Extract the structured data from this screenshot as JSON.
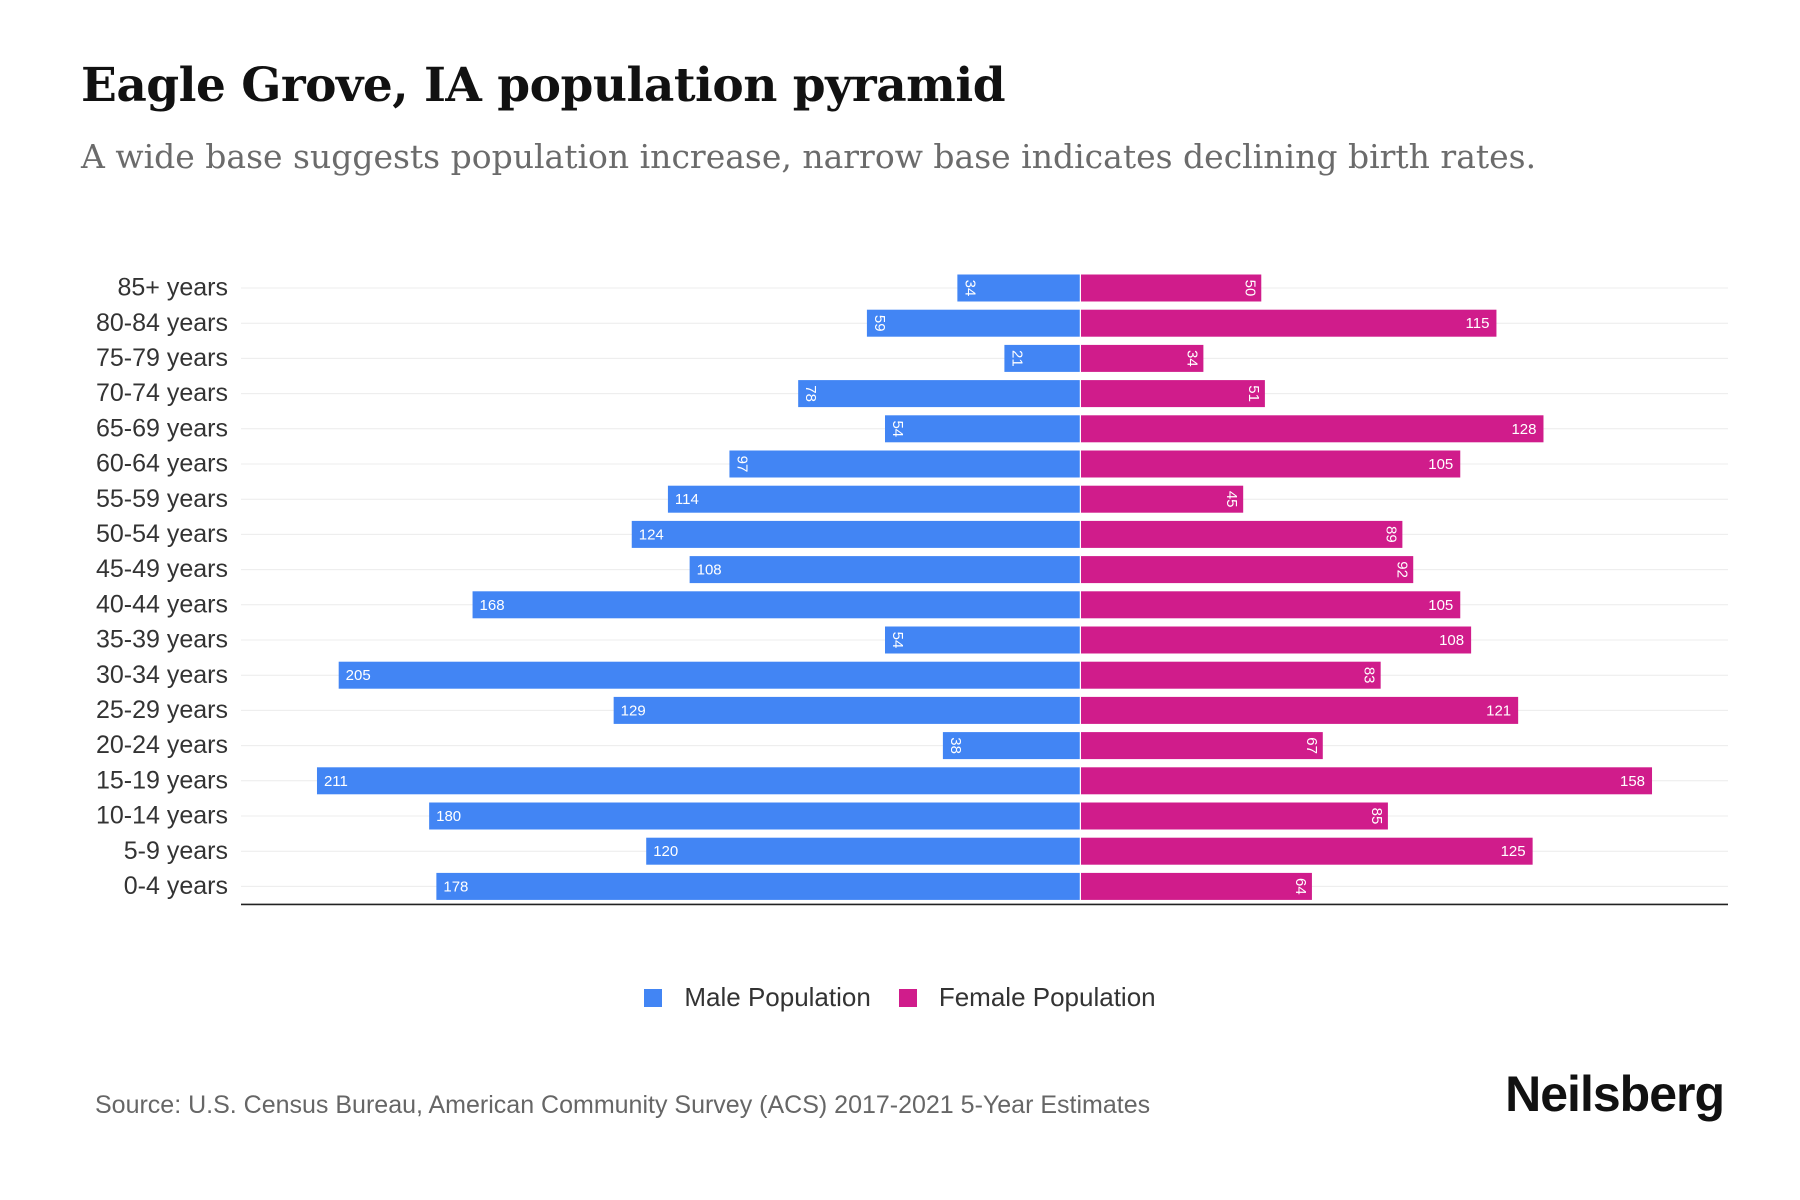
{
  "chart_data": {
    "type": "bar",
    "orientation": "horizontal-pyramid",
    "title": "Eagle Grove, IA population pyramid",
    "subtitle": "A wide base suggests population increase, narrow base indicates declining birth rates.",
    "categories": [
      "85+ years",
      "80-84 years",
      "75-79 years",
      "70-74 years",
      "65-69 years",
      "60-64 years",
      "55-59 years",
      "50-54 years",
      "45-49 years",
      "40-44 years",
      "35-39 years",
      "30-34 years",
      "25-29 years",
      "20-24 years",
      "15-19 years",
      "10-14 years",
      "5-9 years",
      "0-4 years"
    ],
    "series": [
      {
        "name": "Male Population",
        "color": "#4285f4",
        "values": [
          34,
          59,
          21,
          78,
          54,
          97,
          114,
          124,
          108,
          168,
          54,
          205,
          129,
          38,
          211,
          180,
          120,
          178
        ]
      },
      {
        "name": "Female Population",
        "color": "#d01c8b",
        "values": [
          50,
          115,
          34,
          51,
          128,
          105,
          45,
          89,
          92,
          105,
          108,
          83,
          121,
          67,
          158,
          85,
          125,
          64
        ]
      }
    ],
    "xlim": [
      -232,
      179
    ],
    "grid": true,
    "legend_position": "bottom-center"
  },
  "source": "Source: U.S. Census Bureau, American Community Survey (ACS) 2017-2021 5-Year Estimates",
  "brand": "Neilsberg"
}
